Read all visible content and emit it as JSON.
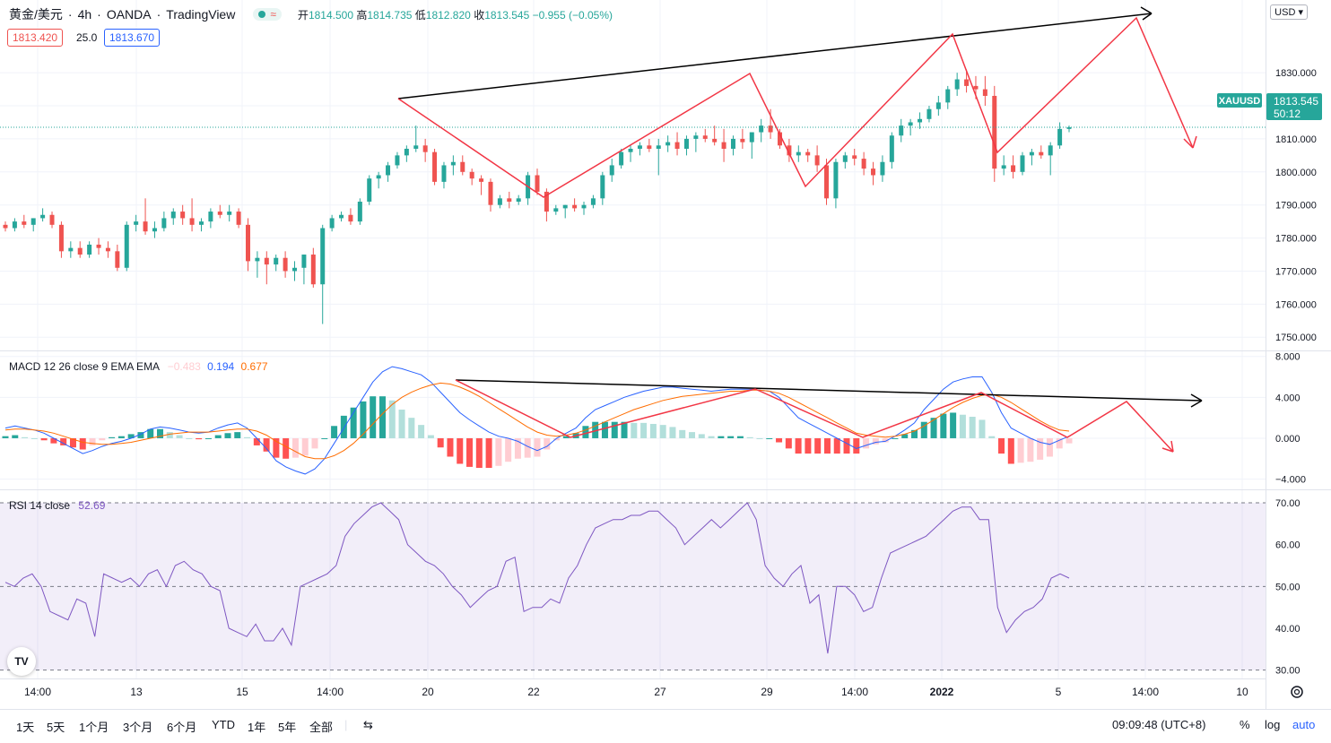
{
  "header": {
    "symbol": "黄金/美元",
    "interval": "4h",
    "broker": "OANDA",
    "platform": "TradingView",
    "o_label": "开",
    "o": "1814.500",
    "h_label": "高",
    "h": "1814.735",
    "l_label": "低",
    "l": "1812.820",
    "c_label": "收",
    "c": "1813.545",
    "change": "−0.955 (−0.05%)",
    "bid": "1813.420",
    "spread": "25.0",
    "ask": "1813.670"
  },
  "macd_legend": {
    "label": "MACD 12 26 close 9 EMA EMA",
    "hist": "−0.483",
    "macd": "0.194",
    "signal": "0.677"
  },
  "rsi_legend": {
    "label": "RSI 14 close",
    "value": "52.69"
  },
  "price_axis": {
    "currency": "USD",
    "ticks": [
      "1830.000",
      "1820.000",
      "1810.000",
      "1800.000",
      "1790.000",
      "1780.000",
      "1770.000",
      "1760.000",
      "1750.000"
    ],
    "symbol_tag": "XAUUSD",
    "last_price": "1813.545",
    "countdown": "50:12"
  },
  "macd_axis": {
    "ticks": [
      "8.000",
      "4.000",
      "0.000",
      "−4.000"
    ]
  },
  "rsi_axis": {
    "ticks": [
      "70.00",
      "60.00",
      "50.00",
      "40.00",
      "30.00"
    ]
  },
  "time_axis": {
    "ticks": [
      "14:00",
      "13",
      "15",
      "14:00",
      "20",
      "22",
      "27",
      "29",
      "14:00",
      "2022",
      "5",
      "14:00",
      "10"
    ]
  },
  "footer": {
    "ranges": [
      "1天",
      "5天",
      "1个月",
      "3个月",
      "6个月",
      "YTD",
      "1年",
      "5年",
      "全部"
    ],
    "clock": "09:09:48 (UTC+8)",
    "pct": "%",
    "log": "log",
    "auto": "auto"
  },
  "colors": {
    "up": "#26a69a",
    "down": "#ef5350",
    "macd": "#2962ff",
    "signal": "#ff6d00",
    "rsi": "#7e57c2",
    "annotation": "#f23645"
  },
  "chart_data": [
    {
      "type": "candlestick",
      "symbol": "XAUUSD",
      "interval": "4h",
      "ylim": [
        1746,
        1852
      ],
      "candles": [
        [
          1784,
          1785,
          1782,
          1783
        ],
        [
          1783,
          1786,
          1782,
          1785
        ],
        [
          1785,
          1787,
          1783,
          1784
        ],
        [
          1784,
          1786,
          1782,
          1786
        ],
        [
          1786,
          1789,
          1785,
          1787
        ],
        [
          1787,
          1788,
          1783,
          1784
        ],
        [
          1784,
          1785,
          1774,
          1776
        ],
        [
          1776,
          1779,
          1774,
          1777
        ],
        [
          1777,
          1779,
          1774,
          1775
        ],
        [
          1775,
          1779,
          1774,
          1778
        ],
        [
          1778,
          1780,
          1775,
          1777
        ],
        [
          1777,
          1779,
          1774,
          1776
        ],
        [
          1776,
          1778,
          1770,
          1771
        ],
        [
          1771,
          1785,
          1770,
          1784
        ],
        [
          1784,
          1787,
          1782,
          1785
        ],
        [
          1785,
          1792,
          1781,
          1782
        ],
        [
          1782,
          1785,
          1780,
          1783
        ],
        [
          1783,
          1788,
          1782,
          1786
        ],
        [
          1786,
          1789,
          1784,
          1788
        ],
        [
          1788,
          1790,
          1784,
          1786
        ],
        [
          1786,
          1792,
          1782,
          1784
        ],
        [
          1784,
          1786,
          1782,
          1785
        ],
        [
          1785,
          1789,
          1783,
          1788
        ],
        [
          1788,
          1790,
          1786,
          1787
        ],
        [
          1787,
          1790,
          1785,
          1788
        ],
        [
          1788,
          1789,
          1783,
          1784
        ],
        [
          1784,
          1786,
          1770,
          1773
        ],
        [
          1773,
          1776,
          1768,
          1774
        ],
        [
          1774,
          1776,
          1766,
          1772
        ],
        [
          1772,
          1775,
          1770,
          1774
        ],
        [
          1774,
          1776,
          1768,
          1770
        ],
        [
          1770,
          1773,
          1767,
          1771
        ],
        [
          1771,
          1775,
          1766,
          1775
        ],
        [
          1775,
          1777,
          1765,
          1766
        ],
        [
          1766,
          1784,
          1754,
          1783
        ],
        [
          1783,
          1787,
          1782,
          1786
        ],
        [
          1786,
          1788,
          1785,
          1787
        ],
        [
          1787,
          1789,
          1784,
          1785
        ],
        [
          1785,
          1792,
          1784,
          1791
        ],
        [
          1791,
          1799,
          1790,
          1798
        ],
        [
          1798,
          1800,
          1795,
          1799
        ],
        [
          1799,
          1803,
          1797,
          1802
        ],
        [
          1802,
          1806,
          1801,
          1805
        ],
        [
          1805,
          1808,
          1803,
          1807
        ],
        [
          1807,
          1814,
          1806,
          1808
        ],
        [
          1808,
          1810,
          1803,
          1806
        ],
        [
          1806,
          1807,
          1796,
          1797
        ],
        [
          1797,
          1803,
          1795,
          1802
        ],
        [
          1802,
          1805,
          1799,
          1803
        ],
        [
          1803,
          1805,
          1799,
          1800
        ],
        [
          1800,
          1801,
          1796,
          1798
        ],
        [
          1798,
          1799,
          1793,
          1797
        ],
        [
          1797,
          1798,
          1788,
          1790
        ],
        [
          1790,
          1793,
          1789,
          1792
        ],
        [
          1792,
          1794,
          1789,
          1791
        ],
        [
          1791,
          1793,
          1790,
          1792
        ],
        [
          1792,
          1800,
          1790,
          1799
        ],
        [
          1799,
          1801,
          1793,
          1794
        ],
        [
          1794,
          1795,
          1785,
          1788
        ],
        [
          1788,
          1790,
          1787,
          1789
        ],
        [
          1789,
          1790,
          1786,
          1790
        ],
        [
          1790,
          1792,
          1788,
          1789
        ],
        [
          1789,
          1791,
          1787,
          1790
        ],
        [
          1790,
          1793,
          1789,
          1792
        ],
        [
          1792,
          1800,
          1790,
          1799
        ],
        [
          1799,
          1804,
          1797,
          1802
        ],
        [
          1802,
          1807,
          1801,
          1806
        ],
        [
          1806,
          1808,
          1803,
          1807
        ],
        [
          1807,
          1809,
          1805,
          1808
        ],
        [
          1808,
          1810,
          1806,
          1807
        ],
        [
          1807,
          1810,
          1799,
          1808
        ],
        [
          1808,
          1811,
          1806,
          1809
        ],
        [
          1809,
          1812,
          1805,
          1807
        ],
        [
          1807,
          1811,
          1805,
          1810
        ],
        [
          1810,
          1812,
          1806,
          1811
        ],
        [
          1811,
          1813,
          1809,
          1810
        ],
        [
          1810,
          1814,
          1808,
          1809
        ],
        [
          1809,
          1813,
          1803,
          1807
        ],
        [
          1807,
          1811,
          1805,
          1810
        ],
        [
          1810,
          1813,
          1807,
          1809
        ],
        [
          1809,
          1812,
          1804,
          1812
        ],
        [
          1812,
          1816,
          1809,
          1814
        ],
        [
          1814,
          1819,
          1810,
          1812
        ],
        [
          1812,
          1813,
          1807,
          1808
        ],
        [
          1808,
          1810,
          1803,
          1805
        ],
        [
          1805,
          1808,
          1803,
          1806
        ],
        [
          1806,
          1807,
          1803,
          1805
        ],
        [
          1805,
          1808,
          1800,
          1802
        ],
        [
          1802,
          1804,
          1790,
          1792
        ],
        [
          1792,
          1804,
          1789,
          1803
        ],
        [
          1803,
          1806,
          1801,
          1805
        ],
        [
          1805,
          1807,
          1802,
          1804
        ],
        [
          1804,
          1806,
          1799,
          1801
        ],
        [
          1801,
          1803,
          1796,
          1799
        ],
        [
          1799,
          1805,
          1797,
          1803
        ],
        [
          1803,
          1812,
          1801,
          1811
        ],
        [
          1811,
          1816,
          1809,
          1814
        ],
        [
          1814,
          1816,
          1811,
          1815
        ],
        [
          1815,
          1818,
          1813,
          1816
        ],
        [
          1816,
          1820,
          1815,
          1819
        ],
        [
          1819,
          1823,
          1817,
          1821
        ],
        [
          1821,
          1826,
          1819,
          1825
        ],
        [
          1825,
          1830,
          1823,
          1828
        ],
        [
          1828,
          1831,
          1824,
          1826
        ],
        [
          1826,
          1829,
          1822,
          1825
        ],
        [
          1825,
          1829,
          1820,
          1823
        ],
        [
          1823,
          1826,
          1797,
          1801
        ],
        [
          1801,
          1805,
          1799,
          1802
        ],
        [
          1802,
          1805,
          1798,
          1800
        ],
        [
          1800,
          1806,
          1799,
          1805
        ],
        [
          1805,
          1807,
          1802,
          1806
        ],
        [
          1806,
          1808,
          1804,
          1805
        ],
        [
          1805,
          1809,
          1799,
          1808
        ],
        [
          1808,
          1815,
          1807,
          1813
        ],
        [
          1813,
          1814,
          1812,
          1813.5
        ]
      ],
      "annotations": [
        {
          "type": "trendline",
          "color": "black",
          "points": [
            [
              1814,
              1812.5
            ],
            [
              1852,
              1838
            ]
          ]
        },
        {
          "type": "zigzag",
          "color": "red",
          "points": [
            [
              1814,
              1812.5
            ],
            [
              1827,
              1788
            ],
            [
              1837,
              1789
            ],
            [
              1856,
              1819
            ],
            [
              1863,
              1791
            ],
            [
              1879,
              1831
            ],
            [
              1887,
              1800
            ],
            [
              1899,
              1834
            ],
            [
              1904,
              1803
            ]
          ]
        }
      ]
    },
    {
      "type": "line",
      "name": "MACD 12 26 close 9 EMA EMA",
      "ylim": [
        -5,
        8.5
      ],
      "series": [
        "MACD",
        "Signal",
        "Histogram"
      ],
      "macd": [
        1.0,
        1.2,
        1.0,
        0.8,
        0.5,
        0.0,
        -0.5,
        -1.0,
        -1.5,
        -1.2,
        -0.8,
        -0.5,
        -0.3,
        0.0,
        0.4,
        0.9,
        1.1,
        1.0,
        0.8,
        0.6,
        0.5,
        0.6,
        1.0,
        1.3,
        1.5,
        1.0,
        0.0,
        -1.0,
        -2.2,
        -2.8,
        -3.2,
        -3.5,
        -3.0,
        -2.0,
        -0.5,
        1.0,
        2.5,
        4.0,
        5.5,
        6.5,
        7.0,
        6.8,
        6.5,
        6.2,
        5.5,
        4.5,
        3.5,
        2.5,
        1.8,
        1.2,
        0.6,
        0.2,
        0.0,
        -0.3,
        -0.8,
        -1.2,
        -0.8,
        0.0,
        0.5,
        1.0,
        2.0,
        2.8,
        3.2,
        3.6,
        4.0,
        4.3,
        4.6,
        4.8,
        5.0,
        5.0,
        4.9,
        4.8,
        4.7,
        4.6,
        4.7,
        4.8,
        4.8,
        4.8,
        4.7,
        4.6,
        4.0,
        3.0,
        2.0,
        1.5,
        1.0,
        0.5,
        0.0,
        -0.5,
        -1.0,
        -0.7,
        -0.4,
        -0.3,
        0.2,
        0.8,
        1.5,
        2.8,
        3.8,
        4.8,
        5.5,
        5.8,
        6.0,
        6.0,
        4.5,
        2.5,
        1.0,
        0.5,
        0.0,
        -0.4,
        -0.6,
        -0.2,
        0.2
      ],
      "signal": [
        0.8,
        0.9,
        0.9,
        0.8,
        0.7,
        0.5,
        0.2,
        -0.1,
        -0.4,
        -0.5,
        -0.6,
        -0.6,
        -0.5,
        -0.4,
        -0.2,
        0.0,
        0.2,
        0.4,
        0.5,
        0.6,
        0.6,
        0.6,
        0.7,
        0.8,
        0.9,
        0.9,
        0.7,
        0.3,
        -0.3,
        -0.8,
        -1.3,
        -1.8,
        -2.0,
        -2.0,
        -1.7,
        -1.2,
        -0.5,
        0.4,
        1.4,
        2.4,
        3.3,
        4.0,
        4.5,
        4.9,
        5.2,
        5.4,
        5.3,
        5.0,
        4.6,
        4.1,
        3.5,
        2.9,
        2.3,
        1.7,
        1.1,
        0.6,
        0.3,
        0.2,
        0.3,
        0.5,
        0.8,
        1.2,
        1.6,
        2.0,
        2.4,
        2.8,
        3.1,
        3.4,
        3.7,
        3.9,
        4.1,
        4.2,
        4.3,
        4.4,
        4.5,
        4.6,
        4.6,
        4.7,
        4.7,
        4.6,
        4.4,
        4.0,
        3.5,
        3.0,
        2.5,
        2.0,
        1.5,
        1.0,
        0.5,
        0.3,
        0.2,
        0.1,
        0.2,
        0.4,
        0.7,
        1.2,
        1.8,
        2.4,
        3.0,
        3.5,
        3.9,
        4.2,
        4.3,
        4.0,
        3.5,
        2.9,
        2.3,
        1.7,
        1.2,
        0.8,
        0.7
      ],
      "histogram": "macd minus signal"
    },
    {
      "type": "line",
      "name": "RSI 14 close",
      "ylim": [
        28,
        73
      ],
      "levels": [
        70,
        50,
        30
      ],
      "values": [
        51,
        50,
        52,
        53,
        50,
        44,
        43,
        42,
        47,
        46,
        38,
        53,
        52,
        51,
        52,
        50,
        53,
        54,
        50,
        55,
        56,
        54,
        53,
        50,
        49,
        40,
        39,
        38,
        41,
        37,
        37,
        40,
        36,
        50,
        51,
        52,
        53,
        55,
        62,
        65,
        67,
        69,
        70,
        68,
        66,
        60,
        58,
        56,
        55,
        53,
        50,
        48,
        45,
        47,
        49,
        50,
        56,
        57,
        44,
        45,
        45,
        47,
        46,
        52,
        55,
        60,
        64,
        65,
        66,
        66,
        67,
        67,
        68,
        68,
        66,
        64,
        60,
        62,
        64,
        66,
        64,
        66,
        68,
        70,
        66,
        55,
        52,
        50,
        53,
        55,
        46,
        48,
        34,
        50,
        50,
        48,
        44,
        45,
        52,
        58,
        59,
        60,
        61,
        62,
        64,
        66,
        68,
        69,
        69,
        66,
        66,
        45,
        39,
        42,
        44,
        45,
        47,
        52,
        53,
        52
      ]
    }
  ]
}
